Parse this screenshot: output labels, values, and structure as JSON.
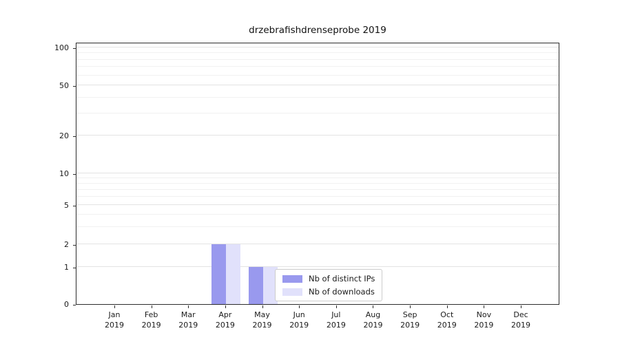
{
  "chart_data": {
    "type": "bar",
    "title": "drzebrafishdrenseprobe 2019",
    "categories": [
      "Jan 2019",
      "Feb 2019",
      "Mar 2019",
      "Apr 2019",
      "May 2019",
      "Jun 2019",
      "Jul 2019",
      "Aug 2019",
      "Sep 2019",
      "Oct 2019",
      "Nov 2019",
      "Dec 2019"
    ],
    "series": [
      {
        "name": "Nb of distinct IPs",
        "color": "#9999ee",
        "values": [
          0,
          0,
          0,
          2,
          1,
          0,
          0,
          0,
          0,
          0,
          0,
          0
        ]
      },
      {
        "name": "Nb of downloads",
        "color": "#e1e1fb",
        "values": [
          0,
          0,
          0,
          2,
          1,
          0,
          0,
          0,
          0,
          0,
          0,
          0
        ]
      }
    ],
    "yscale": "symlog",
    "yticks": [
      0,
      1,
      2,
      5,
      10,
      20,
      50,
      100
    ],
    "gridline_values": [
      1,
      2,
      3,
      4,
      5,
      6,
      7,
      8,
      9,
      10,
      20,
      30,
      40,
      50,
      60,
      70,
      80,
      90,
      100
    ],
    "ylim": [
      0,
      110
    ],
    "xlabel": "",
    "ylabel": "",
    "grid": "horizontal",
    "legend_position": "lower center"
  }
}
